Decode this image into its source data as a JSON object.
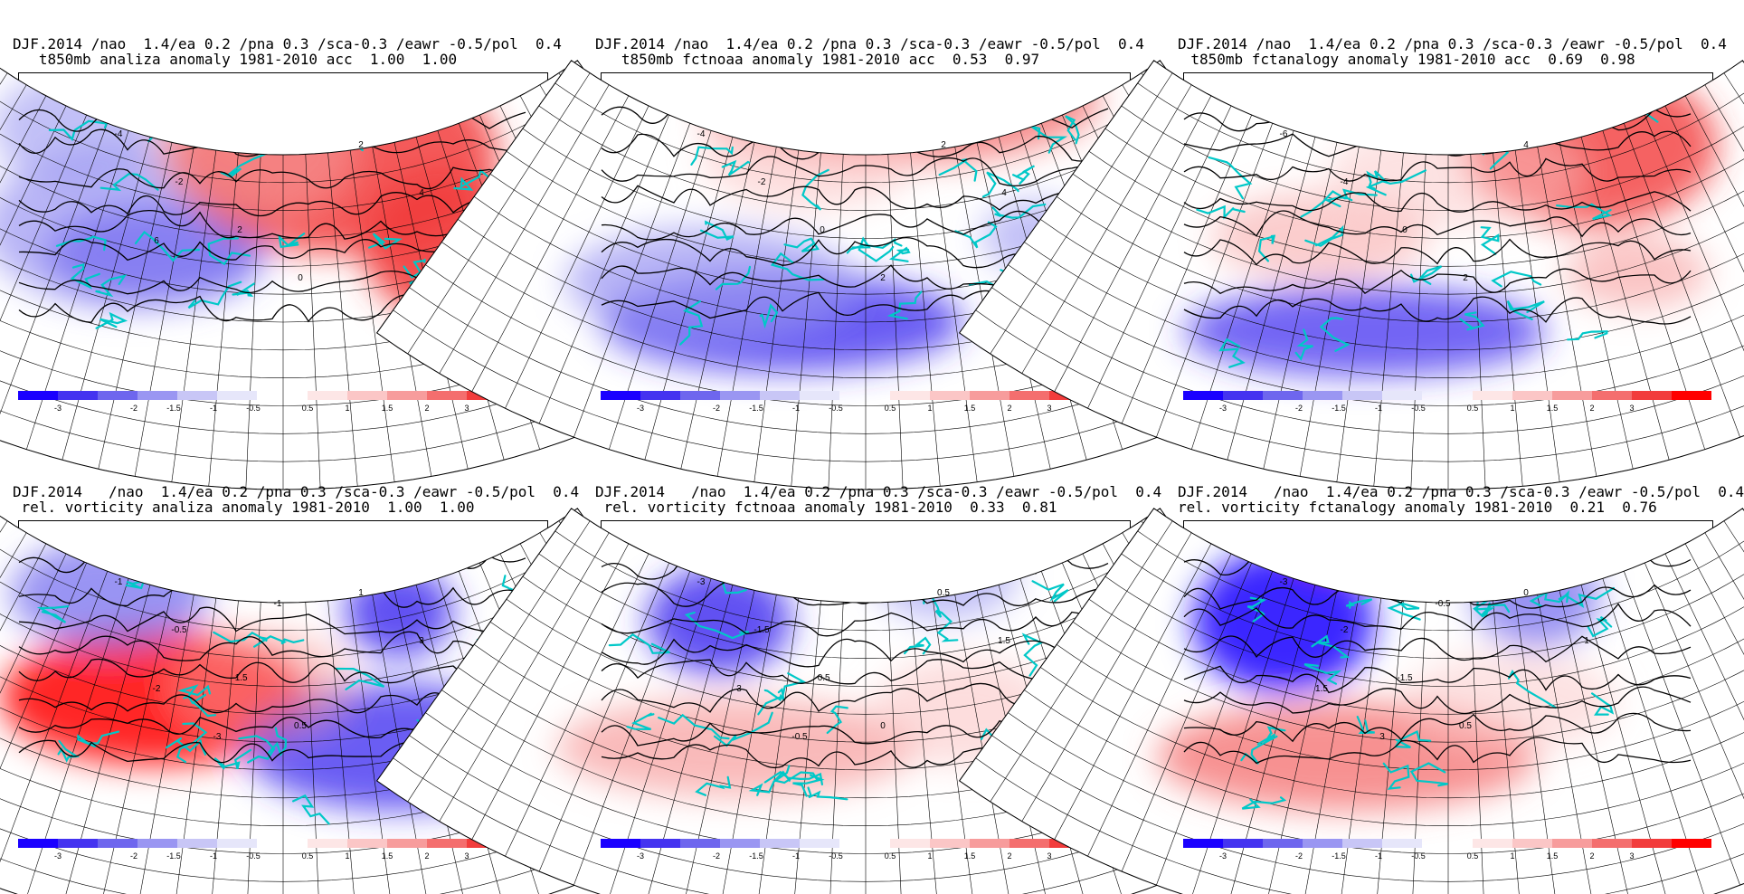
{
  "panels": [
    {
      "id": "p1",
      "title1": "DJF.2014 /nao  1.4/ea 0.2 /pna 0.3 /sca-0.3 /eawr -0.5/pol  0.4",
      "title2": "t850mb analiza anomaly 1981-2010 acc  1.00  1.00",
      "contour_labels": [
        "-4",
        "-2",
        "2",
        "0",
        "2",
        "4",
        "6"
      ]
    },
    {
      "id": "p2",
      "title1": "DJF.2014 /nao  1.4/ea 0.2 /pna 0.3 /sca-0.3 /eawr -0.5/pol  0.4",
      "title2": "t850mb fctnoaa anomaly 1981-2010 acc  0.53  0.97",
      "contour_labels": [
        "-4",
        "-2",
        "0",
        "2",
        "2",
        "4"
      ]
    },
    {
      "id": "p3",
      "title1": "DJF.2014 /nao  1.4/ea 0.2 /pna 0.3 /sca-0.3 /eawr -0.5/pol  0.4",
      "title2": "t850mb fctanalogy anomaly 1981-2010 acc  0.69  0.98",
      "contour_labels": [
        "-6",
        "-4",
        "0",
        "2",
        "4"
      ]
    },
    {
      "id": "p4",
      "title1": "DJF.2014   /nao  1.4/ea 0.2 /pna 0.3 /sca-0.3 /eawr -0.5/pol  0.4",
      "title2": "rel. vorticity analiza anomaly 1981-2010  1.00  1.00",
      "contour_labels": [
        "-1",
        "-0.5",
        "-1.5",
        "0.5",
        "1",
        "3",
        "-2",
        "-3",
        "-1"
      ]
    },
    {
      "id": "p5",
      "title1": "DJF.2014   /nao  1.4/ea 0.2 /pna 0.3 /sca-0.3 /eawr -0.5/pol  0.4",
      "title2": "rel. vorticity fctnoaa anomaly 1981-2010  0.33  0.81",
      "contour_labels": [
        "-3",
        "-1.5",
        "-0.5",
        "0",
        "0.5",
        "1.5",
        "3",
        "-0.5"
      ]
    },
    {
      "id": "p6",
      "title1": "DJF.2014   /nao  1.4/ea 0.2 /pna 0.3 /sca-0.3 /eawr -0.5/pol  0.4",
      "title2": "rel. vorticity fctanalogy anomaly 1981-2010  0.21  0.76",
      "contour_labels": [
        "-3",
        "-2",
        "-1.5",
        "0.5",
        "0",
        "1",
        "1.5",
        "3",
        "-0.5"
      ]
    }
  ],
  "colorbar": {
    "labels": [
      "-3",
      "-2",
      "-1.5",
      "-1",
      "-0.5",
      "0.5",
      "1",
      "1.5",
      "2",
      "3"
    ],
    "neg_colors": [
      "#1a00ff",
      "#4433f0",
      "#6e66ee",
      "#9a96f2",
      "#c8c6f6",
      "#e6e6fa"
    ],
    "pos_colors": [
      "#fde6e6",
      "#fbc6c6",
      "#f79c9c",
      "#f46e6e",
      "#f23c3c",
      "#ff0000"
    ]
  },
  "colors": {
    "coast": "#00c8c8",
    "positive": "#ff0000",
    "negative": "#1a00ff"
  }
}
